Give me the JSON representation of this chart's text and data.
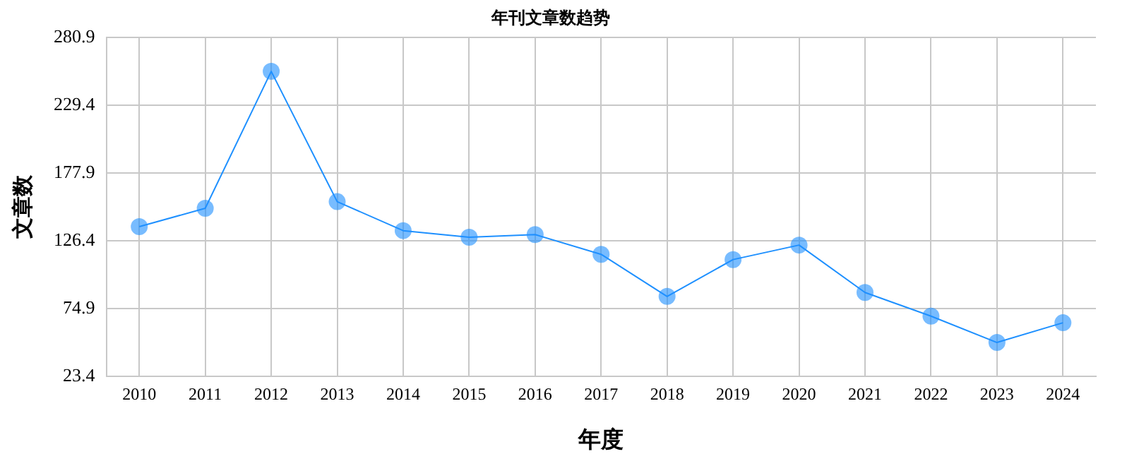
{
  "chart_data": {
    "type": "line",
    "title": "年刊文章数趋势",
    "xlabel": "年度",
    "ylabel": "文章数",
    "categories": [
      "2010",
      "2011",
      "2012",
      "2013",
      "2014",
      "2015",
      "2016",
      "2017",
      "2018",
      "2019",
      "2020",
      "2021",
      "2022",
      "2023",
      "2024"
    ],
    "series": [
      {
        "color": "#1e90ff",
        "values": [
          137,
          151,
          255,
          156,
          134,
          129,
          131,
          116,
          84,
          112,
          123,
          87,
          69,
          49,
          64
        ]
      }
    ],
    "ylim": [
      23.4,
      280.9
    ],
    "yticks": [
      23.4,
      74.9,
      126.4,
      177.9,
      229.4,
      280.9
    ],
    "grid": true,
    "marker": "circle",
    "line_style": "solid",
    "legend": false
  }
}
